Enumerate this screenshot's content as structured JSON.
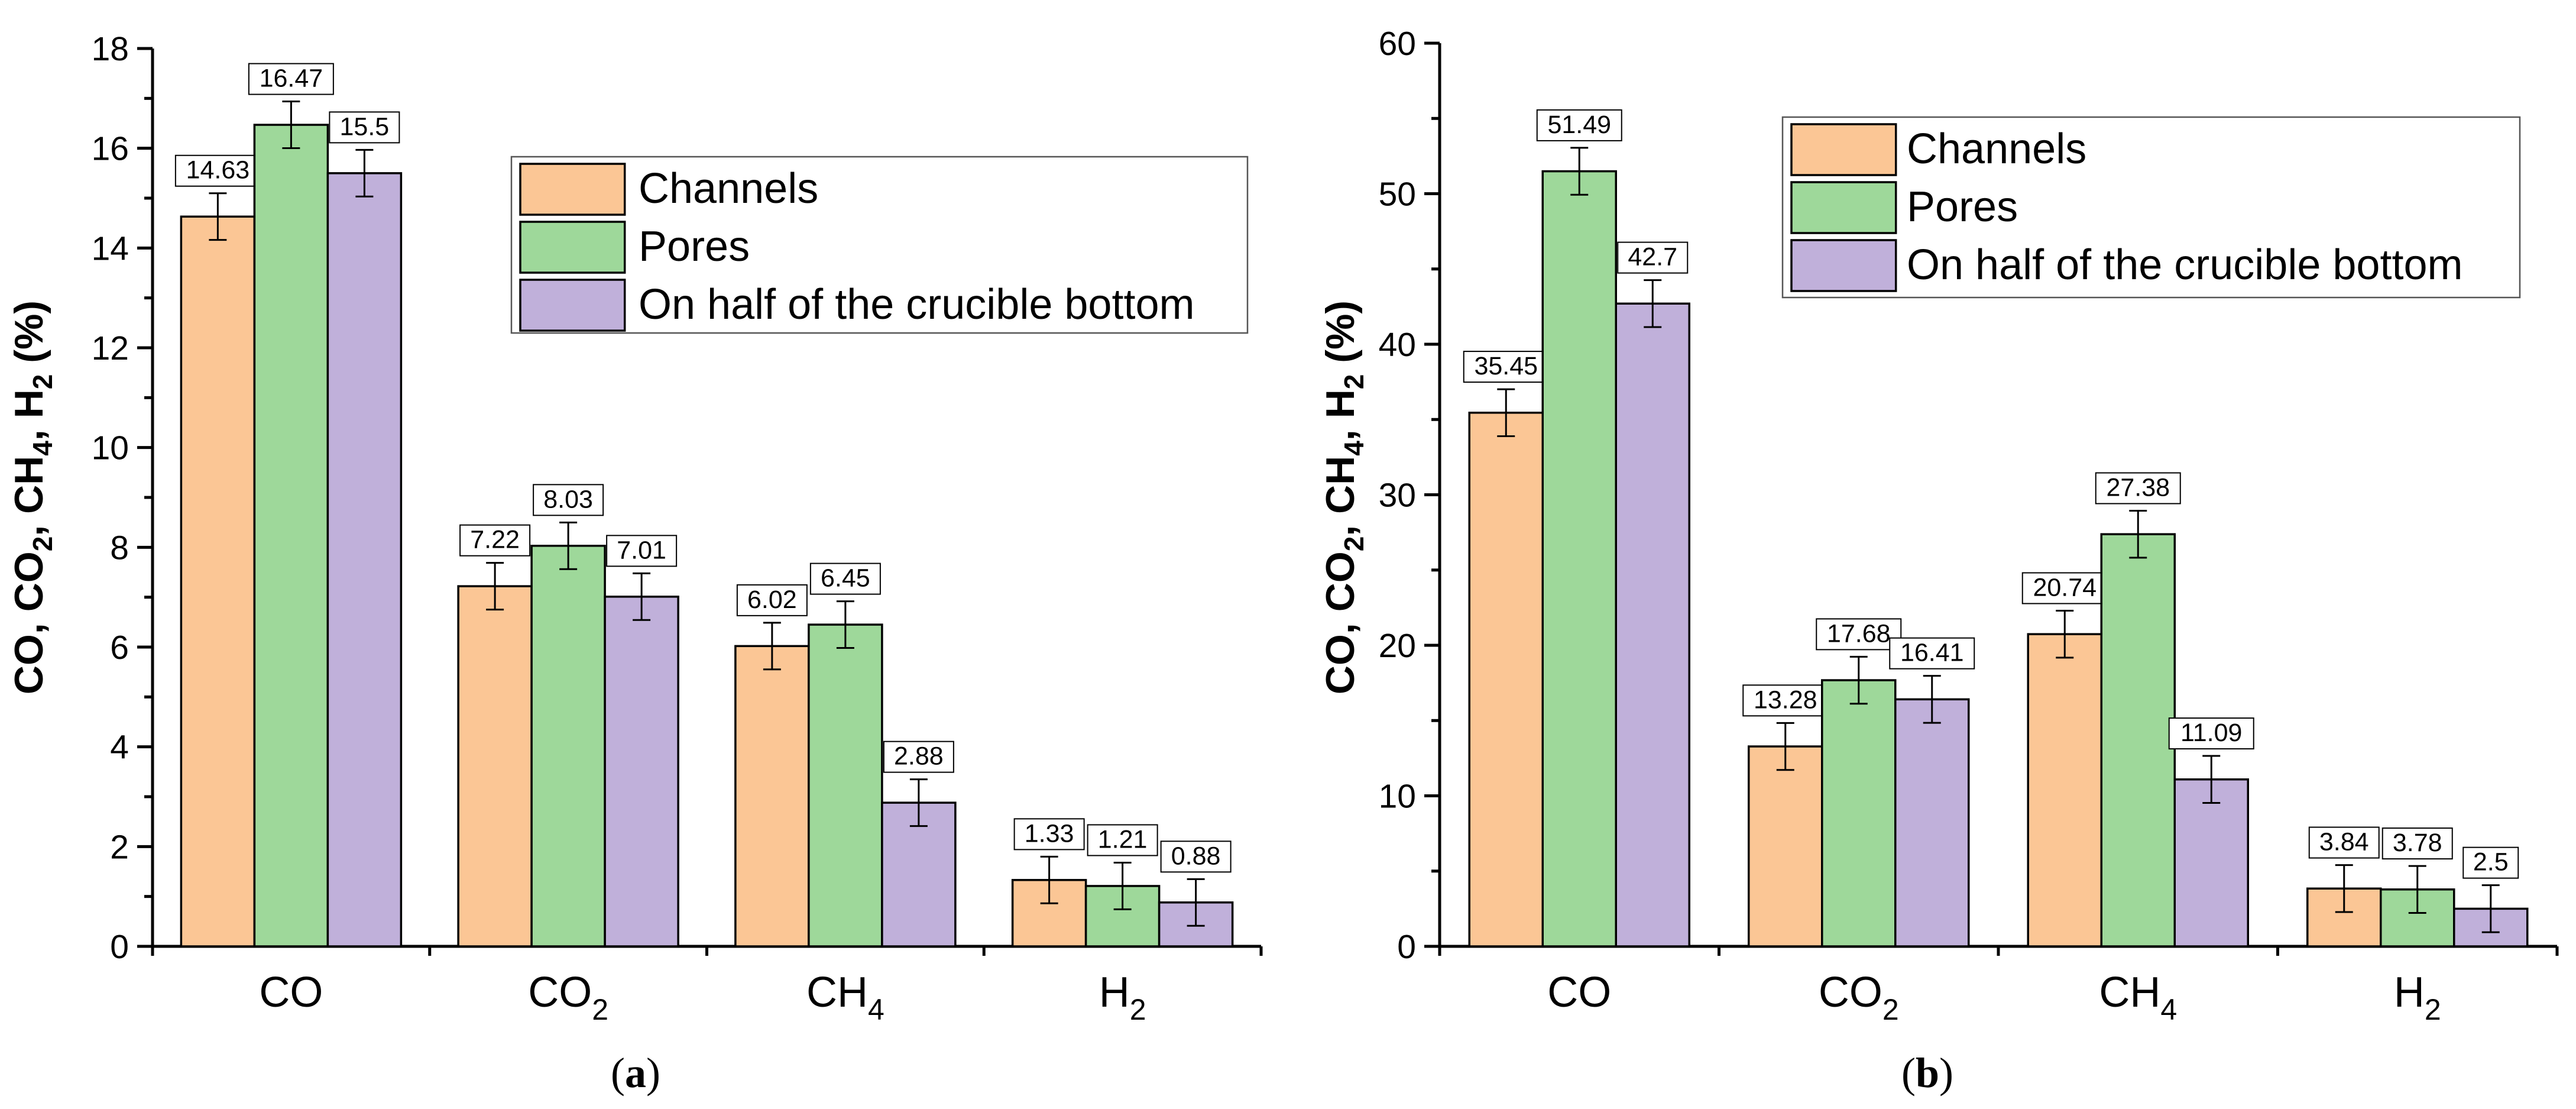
{
  "colors": {
    "channels": "#fbc695",
    "pores": "#9ed89a",
    "bottom": "#c0b0da",
    "axis": "#000000"
  },
  "legend_entries": [
    "Channels",
    "Pores",
    "On half of the crucible bottom"
  ],
  "chart_data": [
    {
      "type": "bar",
      "panel_label": "a",
      "ylabel": "CO, CO2, CH4, H2 (%)",
      "ylabel_parts": {
        "p1": "CO, CO",
        "s1": "2",
        "p2": ", CH",
        "s2": "4",
        "p3": ", H",
        "s3": "2",
        "p4": " (%)"
      },
      "ylim": [
        0,
        18
      ],
      "yticks": [
        "0",
        "2",
        "4",
        "6",
        "8",
        "10",
        "12",
        "14",
        "16",
        "18"
      ],
      "categories": [
        {
          "base": "CO",
          "sub": ""
        },
        {
          "base": "CO",
          "sub": "2"
        },
        {
          "base": "CH",
          "sub": "4"
        },
        {
          "base": "H",
          "sub": "2"
        }
      ],
      "legend_position": "top-right",
      "series": [
        {
          "name": "Channels",
          "values": [
            14.63,
            7.22,
            6.02,
            1.33
          ],
          "labels": [
            "14.63",
            "7.22",
            "6.02",
            "1.33"
          ]
        },
        {
          "name": "Pores",
          "values": [
            16.47,
            8.03,
            6.45,
            1.21
          ],
          "labels": [
            "16.47",
            "8.03",
            "6.45",
            "1.21"
          ]
        },
        {
          "name": "On half of the crucible bottom",
          "values": [
            15.5,
            7.01,
            2.88,
            0.88
          ],
          "labels": [
            "15.5",
            "7.01",
            "2.88",
            "0.88"
          ]
        }
      ]
    },
    {
      "type": "bar",
      "panel_label": "b",
      "ylabel": "CO, CO2, CH4, H2 (%)",
      "ylabel_parts": {
        "p1": "CO, CO",
        "s1": "2",
        "p2": ", CH",
        "s2": "4",
        "p3": ", H",
        "s3": "2",
        "p4": " (%)"
      },
      "ylim": [
        0,
        60
      ],
      "yticks": [
        "0",
        "10",
        "20",
        "30",
        "40",
        "50",
        "60"
      ],
      "categories": [
        {
          "base": "CO",
          "sub": ""
        },
        {
          "base": "CO",
          "sub": "2"
        },
        {
          "base": "CH",
          "sub": "4"
        },
        {
          "base": "H",
          "sub": "2"
        }
      ],
      "legend_position": "top-right",
      "series": [
        {
          "name": "Channels",
          "values": [
            35.45,
            13.28,
            20.74,
            3.84
          ],
          "labels": [
            "35.45",
            "13.28",
            "20.74",
            "3.84"
          ]
        },
        {
          "name": "Pores",
          "values": [
            51.49,
            17.68,
            27.38,
            3.78
          ],
          "labels": [
            "51.49",
            "17.68",
            "27.38",
            "3.78"
          ]
        },
        {
          "name": "On half of the crucible bottom",
          "values": [
            42.7,
            16.41,
            11.09,
            2.5
          ],
          "labels": [
            "42.7",
            "16.41",
            "11.09",
            "2.5"
          ]
        }
      ]
    }
  ]
}
